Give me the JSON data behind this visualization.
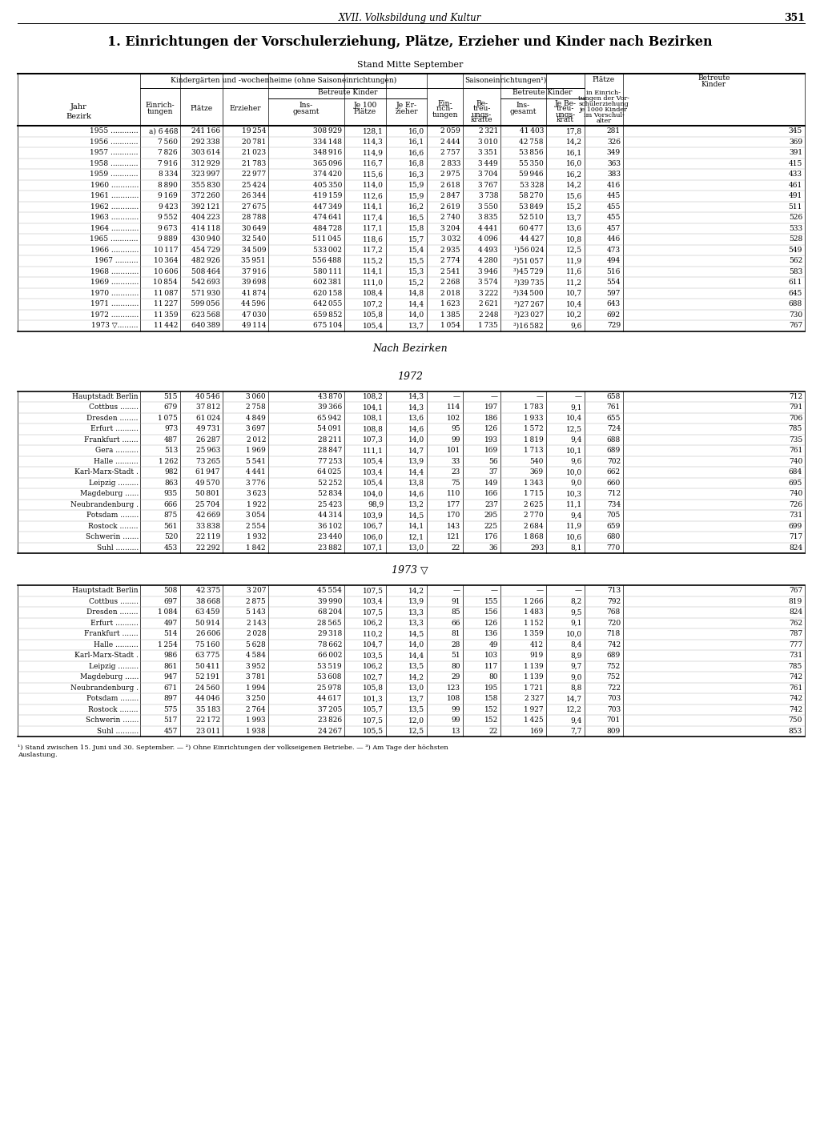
{
  "page_header": "XVII. Volksbildung und Kultur",
  "page_number": "351",
  "title": "1. Einrichtungen der Vorschulerziehung, Plätze, Erzieher und Kinder nach Bezirken",
  "subtitle": "Stand Mitte September",
  "years_data": [
    [
      "1955 ............",
      "a) 6 468",
      "241 166",
      "19 254",
      "308 929",
      "128,1",
      "16,0",
      "2 059",
      "2 321",
      "41 403",
      "17,8",
      "281",
      "345"
    ],
    [
      "1956 ............",
      "7 560",
      "292 338",
      "20 781",
      "334 148",
      "114,3",
      "16,1",
      "2 444",
      "3 010",
      "42 758",
      "14,2",
      "326",
      "369"
    ],
    [
      "1957 ............",
      "7 826",
      "303 614",
      "21 023",
      "348 916",
      "114,9",
      "16,6",
      "2 757",
      "3 351",
      "53 856",
      "16,1",
      "349",
      "391"
    ],
    [
      "1958 ............",
      "7 916",
      "312 929",
      "21 783",
      "365 096",
      "116,7",
      "16,8",
      "2 833",
      "3 449",
      "55 350",
      "16,0",
      "363",
      "415"
    ],
    [
      "1959 ............",
      "8 334",
      "323 997",
      "22 977",
      "374 420",
      "115,6",
      "16,3",
      "2 975",
      "3 704",
      "59 946",
      "16,2",
      "383",
      "433"
    ],
    [
      "1960 ............",
      "8 890",
      "355 830",
      "25 424",
      "405 350",
      "114,0",
      "15,9",
      "2 618",
      "3 767",
      "53 328",
      "14,2",
      "416",
      "461"
    ],
    [
      "1961 ............",
      "9 169",
      "372 260",
      "26 344",
      "419 159",
      "112,6",
      "15,9",
      "2 847",
      "3 738",
      "58 270",
      "15,6",
      "445",
      "491"
    ],
    [
      "1962 ............",
      "9 423",
      "392 121",
      "27 675",
      "447 349",
      "114,1",
      "16,2",
      "2 619",
      "3 550",
      "53 849",
      "15,2",
      "455",
      "511"
    ],
    [
      "1963 ............",
      "9 552",
      "404 223",
      "28 788",
      "474 641",
      "117,4",
      "16,5",
      "2 740",
      "3 835",
      "52 510",
      "13,7",
      "455",
      "526"
    ],
    [
      "1964 ............",
      "9 673",
      "414 118",
      "30 649",
      "484 728",
      "117,1",
      "15,8",
      "3 204",
      "4 441",
      "60 477",
      "13,6",
      "457",
      "533"
    ],
    [
      "1965 ............",
      "9 889",
      "430 940",
      "32 540",
      "511 045",
      "118,6",
      "15,7",
      "3 032",
      "4 096",
      "44 427",
      "10,8",
      "446",
      "528"
    ],
    [
      "1966 ............",
      "10 117",
      "454 729",
      "34 509",
      "533 002",
      "117,2",
      "15,4",
      "2 935",
      "4 493",
      "¹)56 024",
      "12,5",
      "473",
      "549"
    ],
    [
      "1967 ..........",
      "10 364",
      "482 926",
      "35 951",
      "556 488",
      "115,2",
      "15,5",
      "2 774",
      "4 280",
      "³)51 057",
      "11,9",
      "494",
      "562"
    ],
    [
      "1968 ............",
      "10 606",
      "508 464",
      "37 916",
      "580 111",
      "114,1",
      "15,3",
      "2 541",
      "3 946",
      "³)45 729",
      "11,6",
      "516",
      "583"
    ],
    [
      "1969 ............",
      "10 854",
      "542 693",
      "39 698",
      "602 381",
      "111,0",
      "15,2",
      "2 268",
      "3 574",
      "³)39 735",
      "11,2",
      "554",
      "611"
    ],
    [
      "1970 ............",
      "11 087",
      "571 930",
      "41 874",
      "620 158",
      "108,4",
      "14,8",
      "2 018",
      "3 222",
      "³)34 500",
      "10,7",
      "597",
      "645"
    ],
    [
      "1971 ............",
      "11 227",
      "599 056",
      "44 596",
      "642 055",
      "107,2",
      "14,4",
      "1 623",
      "2 621",
      "³)27 267",
      "10,4",
      "643",
      "688"
    ],
    [
      "1972 ............",
      "11 359",
      "623 568",
      "47 030",
      "659 852",
      "105,8",
      "14,0",
      "1 385",
      "2 248",
      "³)23 027",
      "10,2",
      "692",
      "730"
    ],
    [
      "1973 ▽.........",
      "11 442",
      "640 389",
      "49 114",
      "675 104",
      "105,4",
      "13,7",
      "1 054",
      "1 735",
      "³)16 582",
      "9,6",
      "729",
      "767"
    ]
  ],
  "bezirk_1972": [
    [
      "Hauptstadt Berlin",
      "515",
      "40 546",
      "3 060",
      "43 870",
      "108,2",
      "14,3",
      "—",
      "—",
      "—",
      "—",
      "658",
      "712"
    ],
    [
      "Cottbus ........",
      "679",
      "37 812",
      "2 758",
      "39 366",
      "104,1",
      "14,3",
      "114",
      "197",
      "1 783",
      "9,1",
      "761",
      "791"
    ],
    [
      "Dresden ........",
      "1 075",
      "61 024",
      "4 849",
      "65 942",
      "108,1",
      "13,6",
      "102",
      "186",
      "1 933",
      "10,4",
      "655",
      "706"
    ],
    [
      "Erfurt ..........",
      "973",
      "49 731",
      "3 697",
      "54 091",
      "108,8",
      "14,6",
      "95",
      "126",
      "1 572",
      "12,5",
      "724",
      "785"
    ],
    [
      "Frankfurt .......",
      "487",
      "26 287",
      "2 012",
      "28 211",
      "107,3",
      "14,0",
      "99",
      "193",
      "1 819",
      "9,4",
      "688",
      "735"
    ],
    [
      "Gera ..........",
      "513",
      "25 963",
      "1 969",
      "28 847",
      "111,1",
      "14,7",
      "101",
      "169",
      "1 713",
      "10,1",
      "689",
      "761"
    ],
    [
      "Halle ..........",
      "1 262",
      "73 265",
      "5 541",
      "77 253",
      "105,4",
      "13,9",
      "33",
      "56",
      "540",
      "9,6",
      "702",
      "740"
    ],
    [
      "Karl-Marx-Stadt .",
      "982",
      "61 947",
      "4 441",
      "64 025",
      "103,4",
      "14,4",
      "23",
      "37",
      "369",
      "10,0",
      "662",
      "684"
    ],
    [
      "Leipzig .........",
      "863",
      "49 570",
      "3 776",
      "52 252",
      "105,4",
      "13,8",
      "75",
      "149",
      "1 343",
      "9,0",
      "660",
      "695"
    ],
    [
      "Magdeburg ......",
      "935",
      "50 801",
      "3 623",
      "52 834",
      "104,0",
      "14,6",
      "110",
      "166",
      "1 715",
      "10,3",
      "712",
      "740"
    ],
    [
      "Neubrandenburg .",
      "666",
      "25 704",
      "1 922",
      "25 423",
      "98,9",
      "13,2",
      "177",
      "237",
      "2 625",
      "11,1",
      "734",
      "726"
    ],
    [
      "Potsdam ........",
      "875",
      "42 669",
      "3 054",
      "44 314",
      "103,9",
      "14,5",
      "170",
      "295",
      "2 770",
      "9,4",
      "705",
      "731"
    ],
    [
      "Rostock ........",
      "561",
      "33 838",
      "2 554",
      "36 102",
      "106,7",
      "14,1",
      "143",
      "225",
      "2 684",
      "11,9",
      "659",
      "699"
    ],
    [
      "Schwerin .......",
      "520",
      "22 119",
      "1 932",
      "23 440",
      "106,0",
      "12,1",
      "121",
      "176",
      "1 868",
      "10,6",
      "680",
      "717"
    ],
    [
      "Suhl ..........",
      "453",
      "22 292",
      "1 842",
      "23 882",
      "107,1",
      "13,0",
      "22",
      "36",
      "293",
      "8,1",
      "770",
      "824"
    ]
  ],
  "bezirk_1973": [
    [
      "Hauptstadt Berlin",
      "508",
      "42 375",
      "3 207",
      "45 554",
      "107,5",
      "14,2",
      "—",
      "—",
      "—",
      "—",
      "713",
      "767"
    ],
    [
      "Cottbus ........",
      "697",
      "38 668",
      "2 875",
      "39 990",
      "103,4",
      "13,9",
      "91",
      "155",
      "1 266",
      "8,2",
      "792",
      "819"
    ],
    [
      "Dresden ........",
      "1 084",
      "63 459",
      "5 143",
      "68 204",
      "107,5",
      "13,3",
      "85",
      "156",
      "1 483",
      "9,5",
      "768",
      "824"
    ],
    [
      "Erfurt ..........",
      "497",
      "50 914",
      "2 143",
      "28 565",
      "106,2",
      "13,3",
      "66",
      "126",
      "1 152",
      "9,1",
      "720",
      "762"
    ],
    [
      "Frankfurt .......",
      "514",
      "26 606",
      "2 028",
      "29 318",
      "110,2",
      "14,5",
      "81",
      "136",
      "1 359",
      "10,0",
      "718",
      "787"
    ],
    [
      "Halle ..........",
      "1 254",
      "75 160",
      "5 628",
      "78 662",
      "104,7",
      "14,0",
      "28",
      "49",
      "412",
      "8,4",
      "742",
      "777"
    ],
    [
      "Karl-Marx-Stadt .",
      "986",
      "63 775",
      "4 584",
      "66 002",
      "103,5",
      "14,4",
      "51",
      "103",
      "919",
      "8,9",
      "689",
      "731"
    ],
    [
      "Leipzig .........",
      "861",
      "50 411",
      "3 952",
      "53 519",
      "106,2",
      "13,5",
      "80",
      "117",
      "1 139",
      "9,7",
      "752",
      "785"
    ],
    [
      "Magdeburg ......",
      "947",
      "52 191",
      "3 781",
      "53 608",
      "102,7",
      "14,2",
      "29",
      "80",
      "1 139",
      "9,0",
      "752",
      "742"
    ],
    [
      "Neubrandenburg .",
      "671",
      "24 560",
      "1 994",
      "25 978",
      "105,8",
      "13,0",
      "123",
      "195",
      "1 721",
      "8,8",
      "722",
      "761"
    ],
    [
      "Potsdam ........",
      "897",
      "44 046",
      "3 250",
      "44 617",
      "101,3",
      "13,7",
      "108",
      "158",
      "2 327",
      "14,7",
      "703",
      "742"
    ],
    [
      "Rostock ........",
      "575",
      "35 183",
      "2 764",
      "37 205",
      "105,7",
      "13,5",
      "99",
      "152",
      "1 927",
      "12,2",
      "703",
      "742"
    ],
    [
      "Schwerin .......",
      "517",
      "22 172",
      "1 993",
      "23 826",
      "107,5",
      "12,0",
      "99",
      "152",
      "1 425",
      "9,4",
      "701",
      "750"
    ],
    [
      "Suhl ..........",
      "457",
      "23 011",
      "1 938",
      "24 267",
      "105,5",
      "12,5",
      "13",
      "22",
      "169",
      "7,7",
      "809",
      "853"
    ]
  ],
  "footnote": "¹) Stand zwischen 15. Juni und 30. September. — ²) Ohne Einrichtungen der volkseigenen Betriebe. — ³) Am Tage der höchsten\nAuslastung."
}
